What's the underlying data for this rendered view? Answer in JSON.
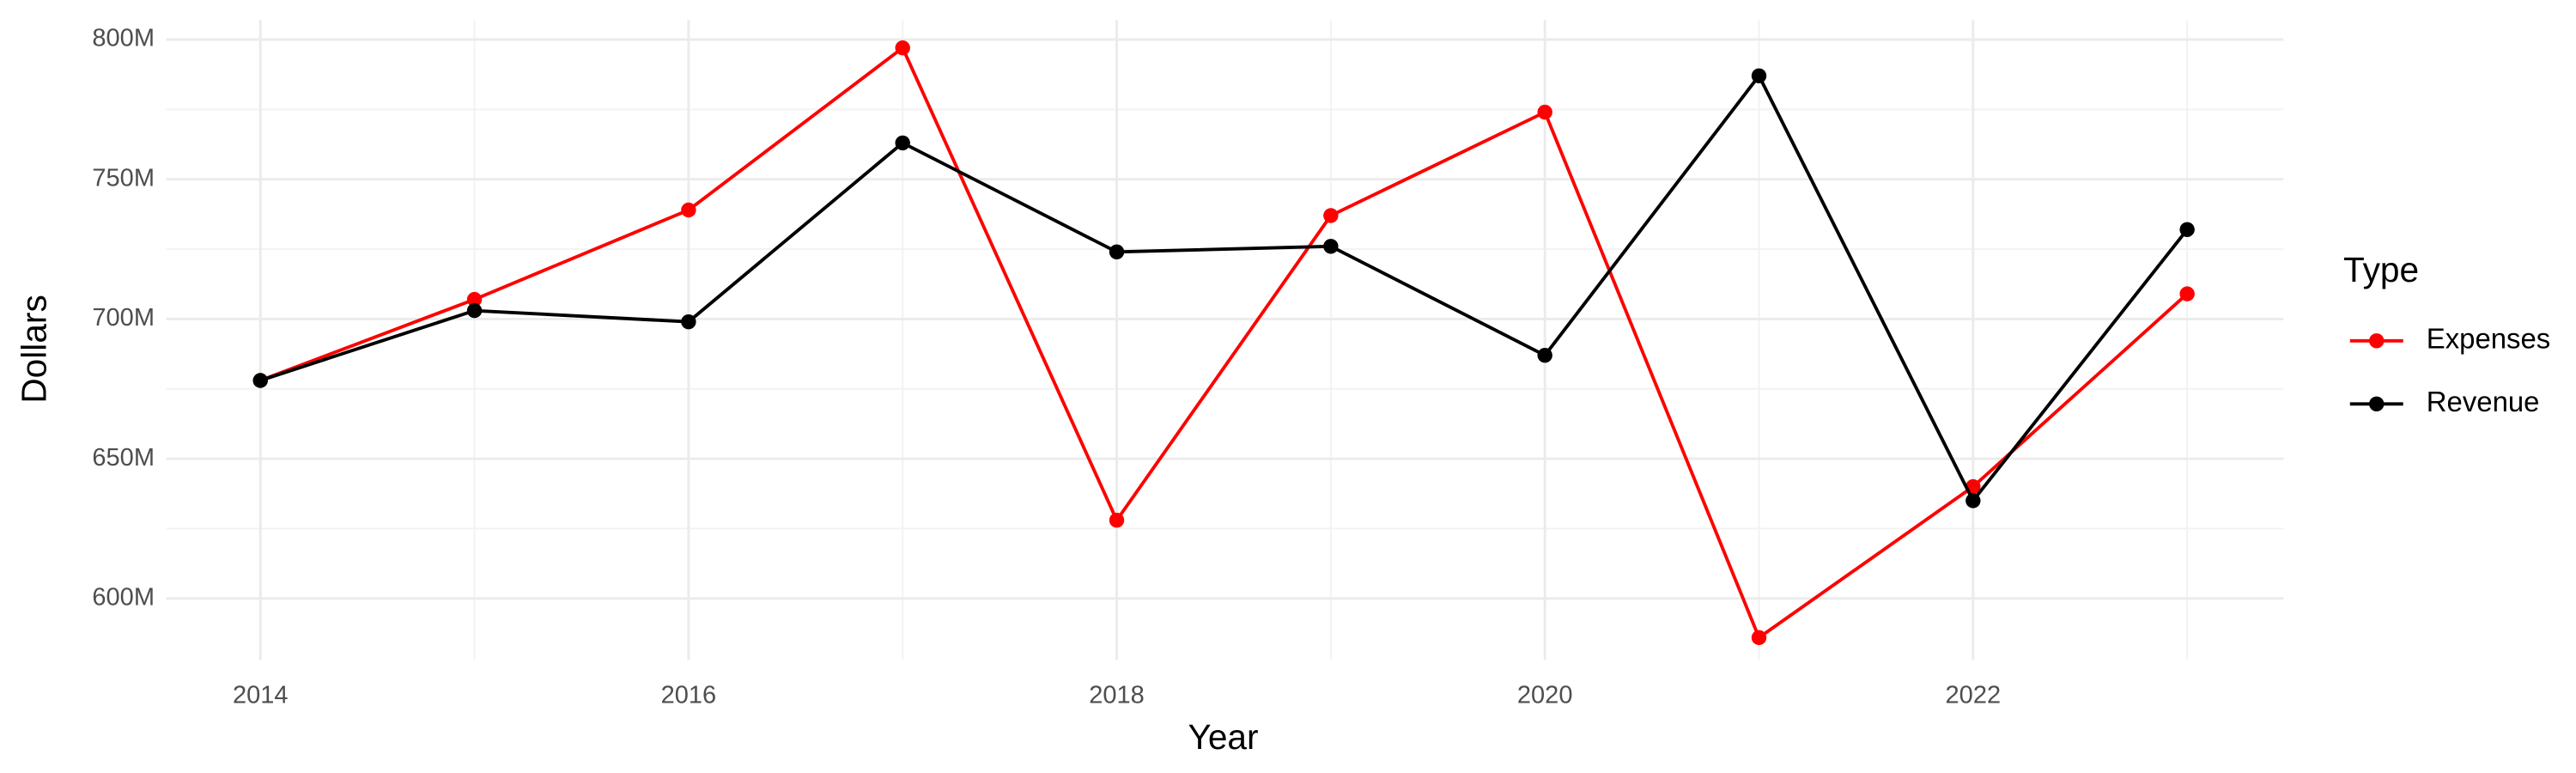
{
  "chart_data": {
    "type": "line",
    "x_label": "Year",
    "y_label": "Dollars",
    "legend_title": "Type",
    "x": [
      2014,
      2015,
      2016,
      2017,
      2018,
      2019,
      2020,
      2021,
      2022,
      2023
    ],
    "series": [
      {
        "name": "Expenses",
        "color": "#ff0000",
        "values": [
          678000000,
          707000000,
          739000000,
          797000000,
          628000000,
          737000000,
          774000000,
          586000000,
          640000000,
          709000000
        ]
      },
      {
        "name": "Revenue",
        "color": "#000000",
        "values": [
          678000000,
          703000000,
          699000000,
          763000000,
          724000000,
          726000000,
          687000000,
          787000000,
          635000000,
          732000000
        ]
      }
    ],
    "xlim": [
      2013.56,
      2023.45
    ],
    "xticks": [
      2014,
      2016,
      2018,
      2020,
      2022
    ],
    "ylim": [
      578000000,
      807000000
    ],
    "yticks": [
      {
        "value": 600000000,
        "label": "600M"
      },
      {
        "value": 650000000,
        "label": "650M"
      },
      {
        "value": 700000000,
        "label": "700M"
      },
      {
        "value": 750000000,
        "label": "750M"
      },
      {
        "value": 800000000,
        "label": "800M"
      }
    ],
    "grid": true,
    "legend_position": "right"
  }
}
